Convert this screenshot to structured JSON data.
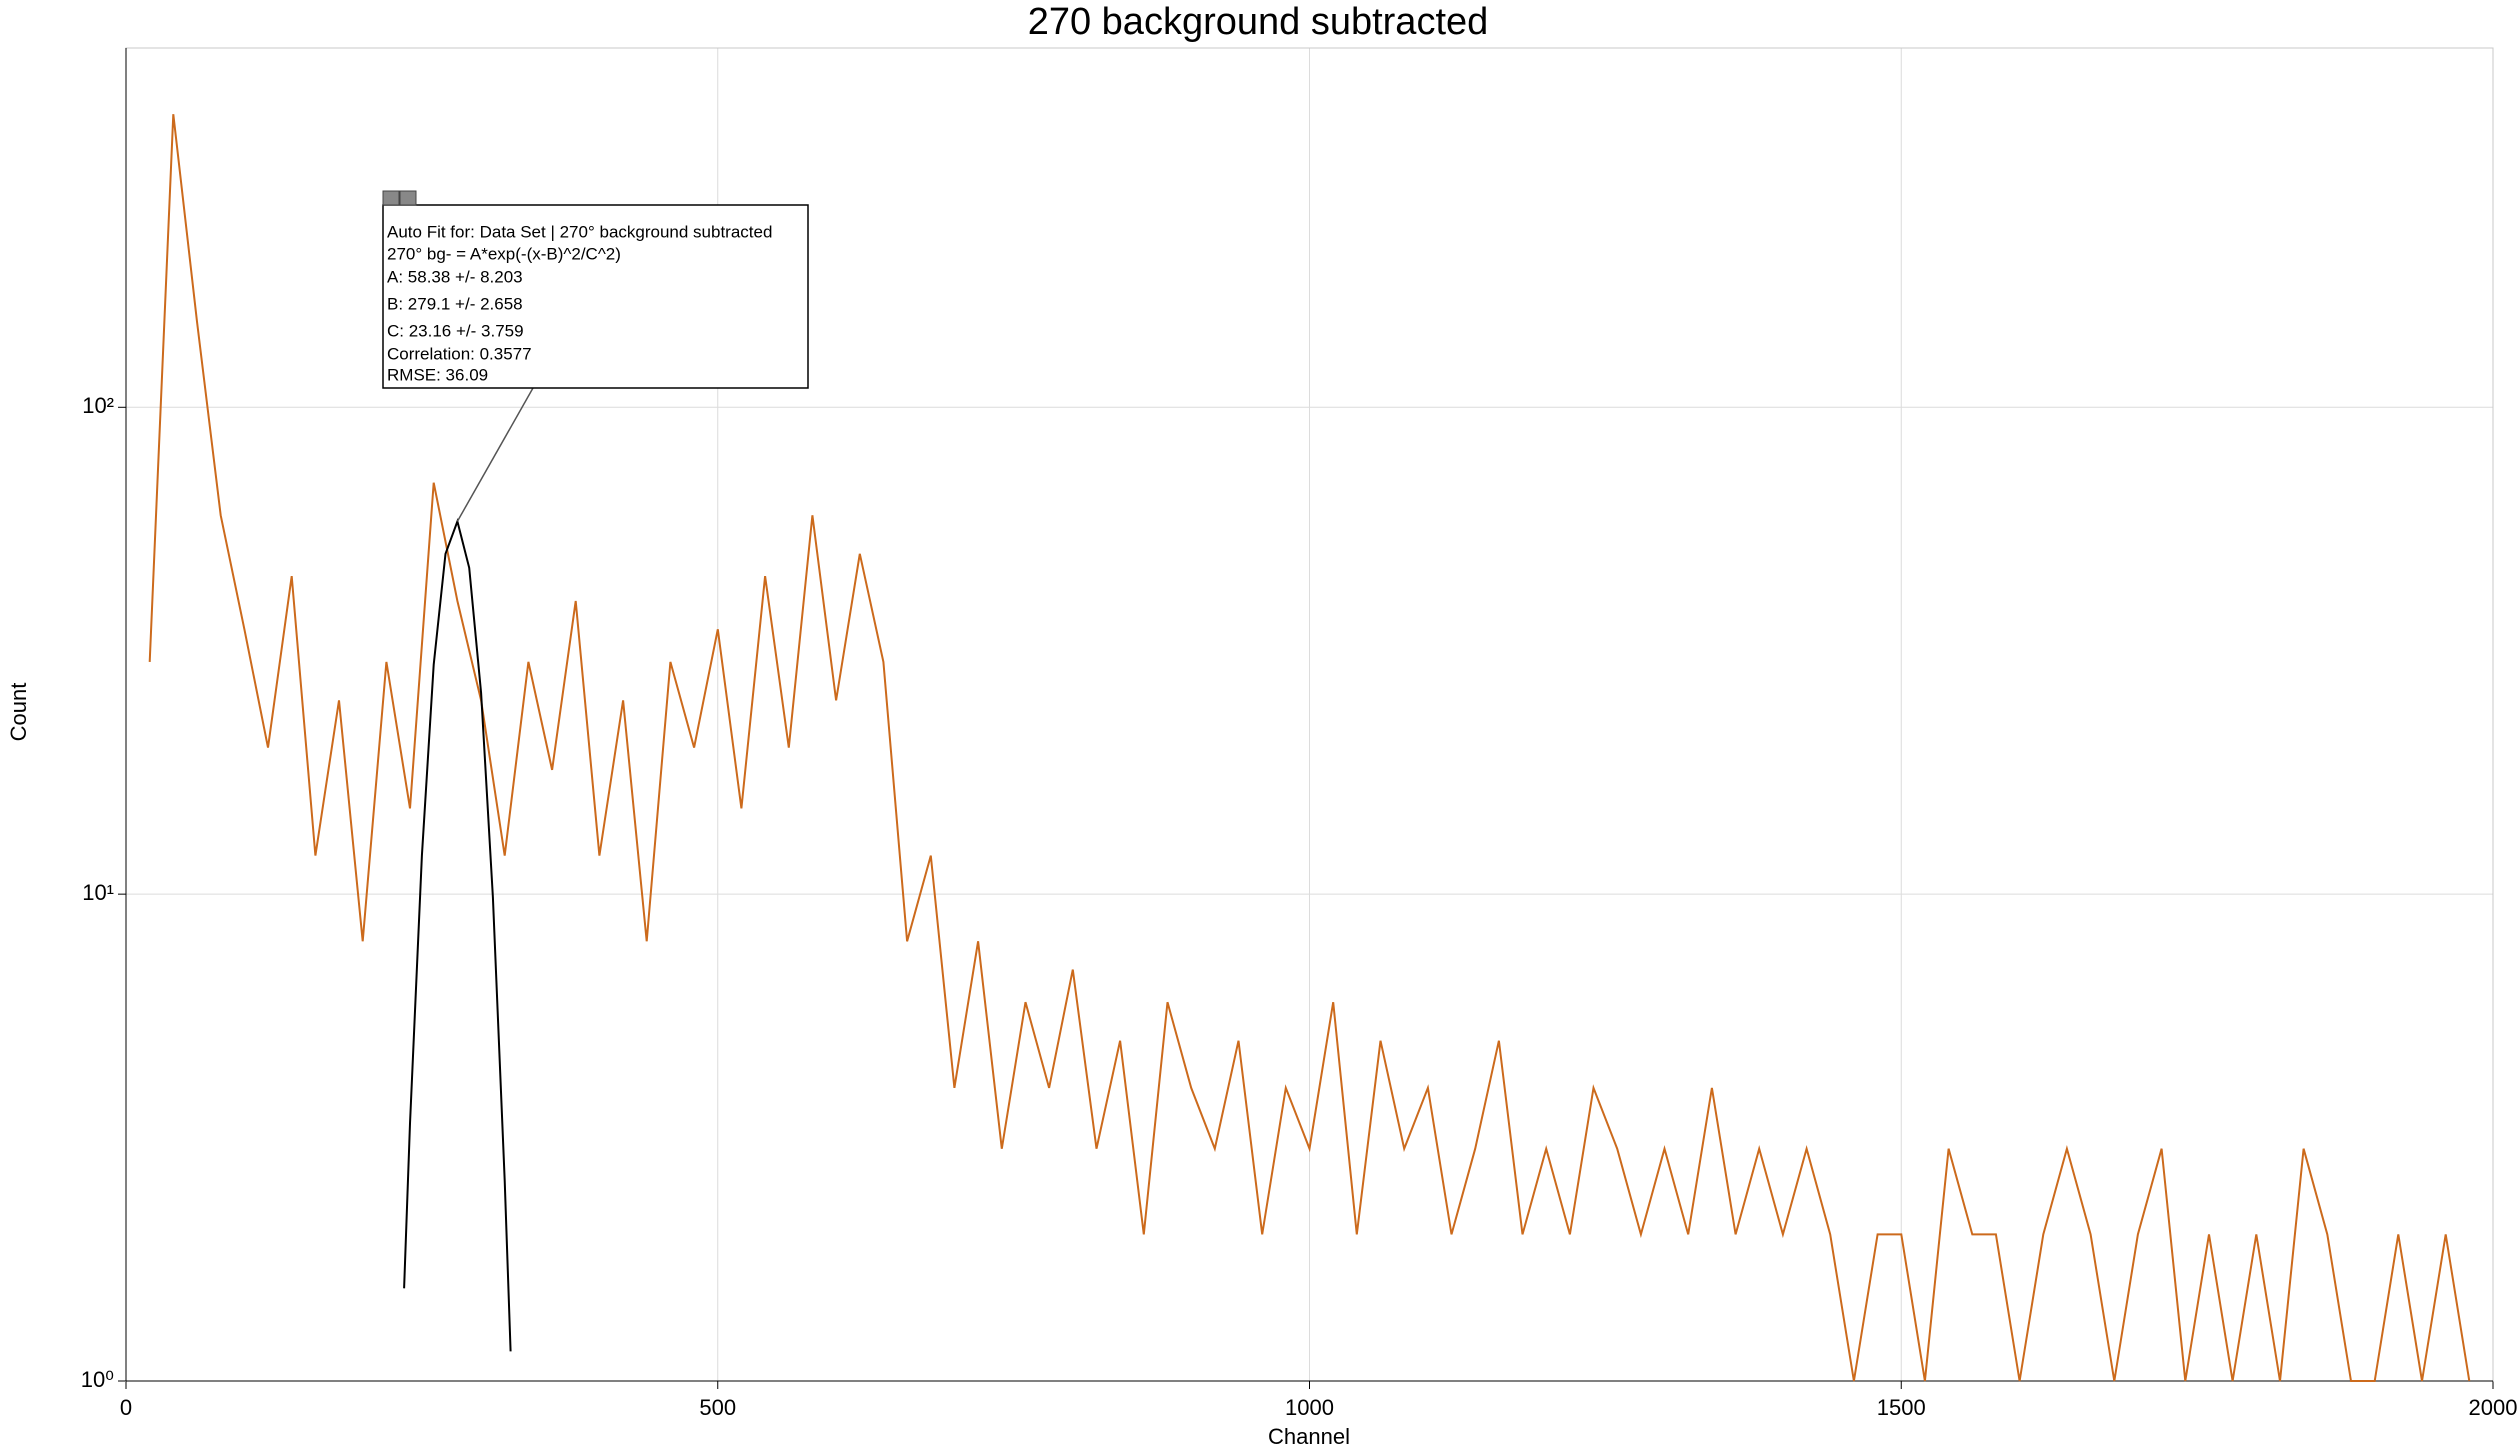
{
  "chart_data": {
    "type": "line",
    "title": "270 background subtracted",
    "x_label": "Channel",
    "y_label": "Count",
    "xlim": [
      0,
      2000
    ],
    "xticks": [
      0,
      500,
      1000,
      1500,
      2000
    ],
    "ylim": [
      1,
      547
    ],
    "log_y": true,
    "yticks": [
      {
        "value": 1,
        "label": "10⁰"
      },
      {
        "value": 10,
        "label": "10¹"
      },
      {
        "value": 100,
        "label": "10²"
      }
    ],
    "grid": true,
    "series": [
      {
        "name": "270° background subtracted",
        "color": "#cc6a1c",
        "x": [
          20,
          40,
          60,
          80,
          100,
          120,
          140,
          160,
          180,
          200,
          220,
          240,
          260,
          280,
          300,
          320,
          340,
          360,
          380,
          400,
          420,
          440,
          460,
          480,
          500,
          520,
          540,
          560,
          580,
          600,
          620,
          640,
          660,
          680,
          700,
          720,
          740,
          760,
          780,
          800,
          820,
          840,
          860,
          880,
          900,
          920,
          940,
          960,
          980,
          1000,
          1020,
          1040,
          1060,
          1080,
          1100,
          1120,
          1140,
          1160,
          1180,
          1200,
          1220,
          1240,
          1260,
          1280,
          1300,
          1320,
          1340,
          1360,
          1380,
          1400,
          1420,
          1440,
          1460,
          1480,
          1500,
          1520,
          1540,
          1560,
          1580,
          1600,
          1620,
          1640,
          1660,
          1680,
          1700,
          1720,
          1740,
          1760,
          1780,
          1800,
          1820,
          1840,
          1860,
          1880,
          1900,
          1920,
          1940,
          1960,
          1980
        ],
        "values": [
          30,
          400,
          150,
          60,
          35,
          20,
          45,
          12,
          25,
          8,
          30,
          15,
          70,
          40,
          25,
          12,
          30,
          18,
          40,
          12,
          25,
          8,
          30,
          20,
          35,
          15,
          45,
          20,
          60,
          25,
          50,
          30,
          8,
          12,
          4,
          8,
          3,
          6,
          4,
          7,
          3,
          5,
          2,
          6,
          4,
          3,
          5,
          2,
          4,
          3,
          6,
          2,
          5,
          3,
          4,
          2,
          3,
          5,
          2,
          3,
          2,
          4,
          3,
          2,
          3,
          2,
          4,
          2,
          3,
          2,
          3,
          2,
          1,
          2,
          2,
          1,
          3,
          2,
          2,
          1,
          2,
          3,
          2,
          1,
          2,
          3,
          1,
          2,
          1,
          2,
          1,
          3,
          2,
          1,
          1,
          2,
          1,
          2,
          1
        ]
      },
      {
        "name": "270° bg-",
        "color": "#000000",
        "x": [
          235,
          240,
          250,
          260,
          270,
          280,
          290,
          300,
          310,
          320,
          325
        ],
        "values": [
          1.55,
          3.38,
          12.0,
          29.6,
          50.0,
          58.3,
          46.8,
          25.9,
          9.85,
          2.58,
          1.15
        ]
      }
    ],
    "annotation": [
      "Auto Fit for: Data Set | 270° background subtracted",
      "270° bg- = A*exp(-(x-B)^2/C^2)",
      "A: 58.38 +/- 8.203",
      "B: 279.1 +/- 2.658",
      "C: 23.16 +/- 3.759",
      "Correlation: 0.3577",
      "RMSE: 36.09"
    ]
  }
}
